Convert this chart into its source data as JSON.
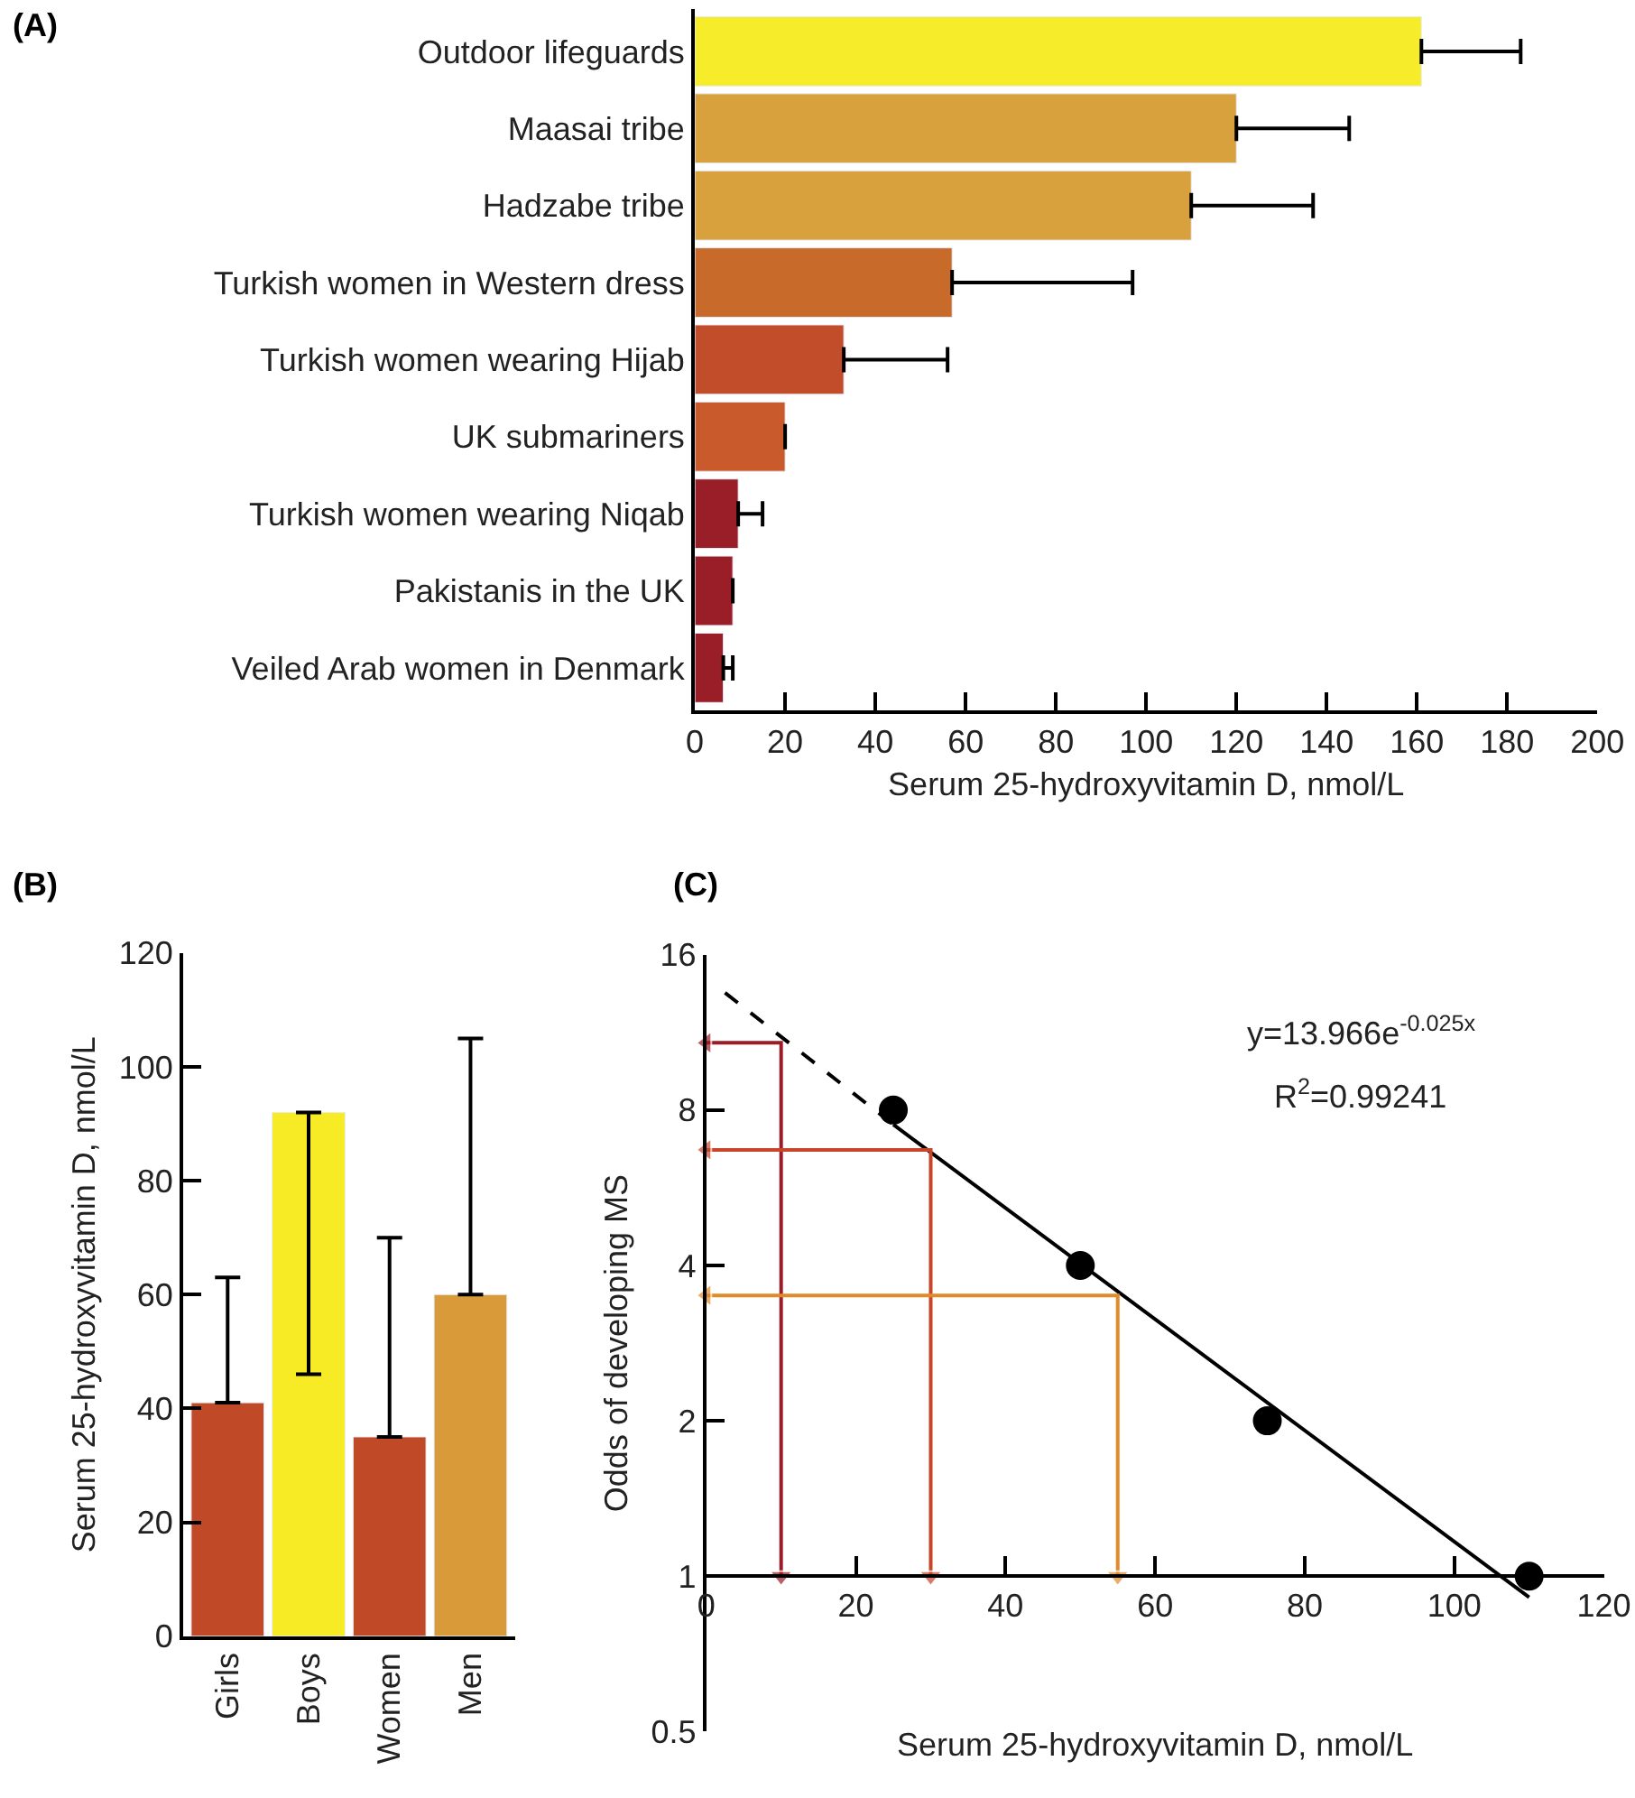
{
  "chart_data": [
    {
      "type": "bar",
      "title": "(A)",
      "orientation": "horizontal",
      "xlabel": "Serum 25-hydroxyvitamin D, nmol/L",
      "categories": [
        "Outdoor lifeguards",
        "Maasai tribe",
        "Hadzabe tribe",
        "Turkish women in Western dress",
        "Turkish women wearing Hijab",
        "UK submariners",
        "Turkish women wearing Niqab",
        "Pakistanis in the UK",
        "Veiled Arab women in Denmark"
      ],
      "values": [
        161,
        120,
        110,
        57,
        33,
        20,
        9.6,
        8.4,
        6.3
      ],
      "errors": [
        [
          161,
          183
        ],
        [
          120,
          145
        ],
        [
          110,
          137
        ],
        [
          57,
          97
        ],
        [
          33,
          56
        ],
        null,
        [
          9.6,
          15
        ],
        null,
        [
          6.3,
          8.4
        ]
      ],
      "colors": [
        "#f7ec2a",
        "#d9a03e",
        "#d9a03e",
        "#c86a2a",
        "#c24d2a",
        "#c95a2c",
        "#9a1e27",
        "#9a1e27",
        "#9a1e27"
      ],
      "xlim": [
        0,
        200
      ],
      "xticks": [
        0,
        20,
        40,
        60,
        80,
        100,
        120,
        140,
        160,
        180,
        200
      ]
    },
    {
      "type": "bar",
      "title": "(B)",
      "ylabel": "Serum 25-hydroxyvitamin D, nmol/L",
      "categories": [
        "Girls",
        "Boys",
        "Women",
        "Men"
      ],
      "values": [
        41,
        92,
        35,
        60
      ],
      "errors": [
        [
          41,
          63
        ],
        [
          46,
          92
        ],
        [
          35,
          70
        ],
        [
          60,
          105
        ]
      ],
      "colors": [
        "#c04a27",
        "#f6eb24",
        "#c04a27",
        "#d99a3a"
      ],
      "ylim": [
        0,
        120
      ],
      "yticks": [
        0,
        20,
        40,
        60,
        80,
        100,
        120
      ]
    },
    {
      "type": "scatter",
      "title": "(C)",
      "xlabel": "Serum 25-hydroxyvitamin D, nmol/L",
      "ylabel": "Odds of developing MS",
      "log": "y",
      "annotations": [
        "y=13.966e$^{-0.025x}$",
        "R$^{2}$=0.99241"
      ],
      "xlim": [
        0,
        120
      ],
      "xticks": [
        0,
        20,
        40,
        60,
        80,
        100,
        120
      ],
      "ylim": [
        0.5,
        16
      ],
      "yticks": [
        0.5,
        1,
        2,
        4,
        8,
        16
      ],
      "series": [
        {
          "type": "scatter",
          "marker": "circle",
          "color": "#000000",
          "x": [
            25,
            50,
            75,
            110
          ],
          "values": [
            8,
            4,
            2,
            1
          ]
        },
        {
          "type": "line",
          "line_style": "dashed",
          "color": "#000000",
          "x": [
            2.5,
            25
          ],
          "values": [
            13.5,
            7.5
          ]
        },
        {
          "type": "line",
          "line_style": "solid",
          "color": "#000000",
          "x": [
            25,
            110
          ],
          "values": [
            7.5,
            0.91
          ]
        },
        {
          "type": "line",
          "line_style": "solid",
          "marker": "triangle",
          "color": "#9b1c24",
          "x": [
            0,
            10,
            10
          ],
          "values": [
            10.8,
            10.8,
            1
          ]
        },
        {
          "type": "line",
          "line_style": "solid",
          "marker": "triangle",
          "color": "#c8452a",
          "x": [
            0,
            30,
            30
          ],
          "values": [
            6.7,
            6.7,
            1
          ]
        },
        {
          "type": "line",
          "line_style": "solid",
          "marker": "triangle",
          "color": "#e08a2a",
          "x": [
            0,
            55,
            55
          ],
          "values": [
            3.5,
            3.5,
            1
          ]
        }
      ]
    }
  ]
}
